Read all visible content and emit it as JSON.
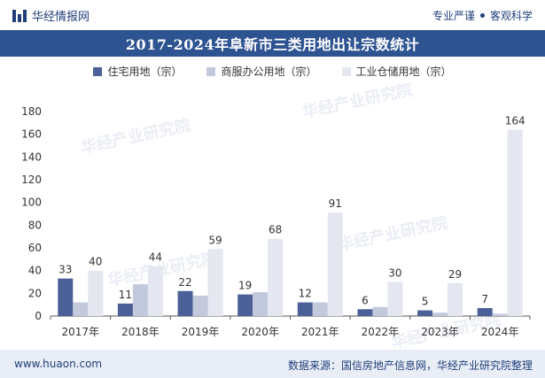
{
  "header": {
    "brand_name": "华经情报网",
    "slogan_left": "专业严谨",
    "slogan_right": "客观科学"
  },
  "title": "2017-2024年阜新市三类用地出让宗数统计",
  "watermark": "华经产业研究院",
  "colors": {
    "title_bg": "#2e5391",
    "series_residential": "#4a6096",
    "series_commercial": "#c3c9dc",
    "series_industrial": "#e4e6f0",
    "axis_text": "#333333"
  },
  "chart_data": {
    "type": "bar",
    "categories": [
      "2017年",
      "2018年",
      "2019年",
      "2020年",
      "2021年",
      "2022年",
      "2023年",
      "2024年"
    ],
    "series": [
      {
        "name": "住宅用地（宗）",
        "values": [
          33,
          11,
          22,
          19,
          12,
          6,
          5,
          7
        ],
        "labeled": true
      },
      {
        "name": "商服办公用地（宗）",
        "values": [
          12,
          28,
          18,
          21,
          12,
          8,
          3,
          2
        ],
        "labeled": false
      },
      {
        "name": "工业仓储用地（宗）",
        "values": [
          40,
          44,
          59,
          68,
          91,
          30,
          29,
          164
        ],
        "labeled": true
      }
    ],
    "ylim": [
      0,
      180
    ],
    "yticks": [
      0,
      20,
      40,
      60,
      80,
      100,
      120,
      140,
      160,
      180
    ],
    "grid": false,
    "legend_position": "top"
  },
  "footer": {
    "website": "www.huaon.com",
    "source": "数据来源：国信房地产信息网，华经产业研究院整理"
  }
}
